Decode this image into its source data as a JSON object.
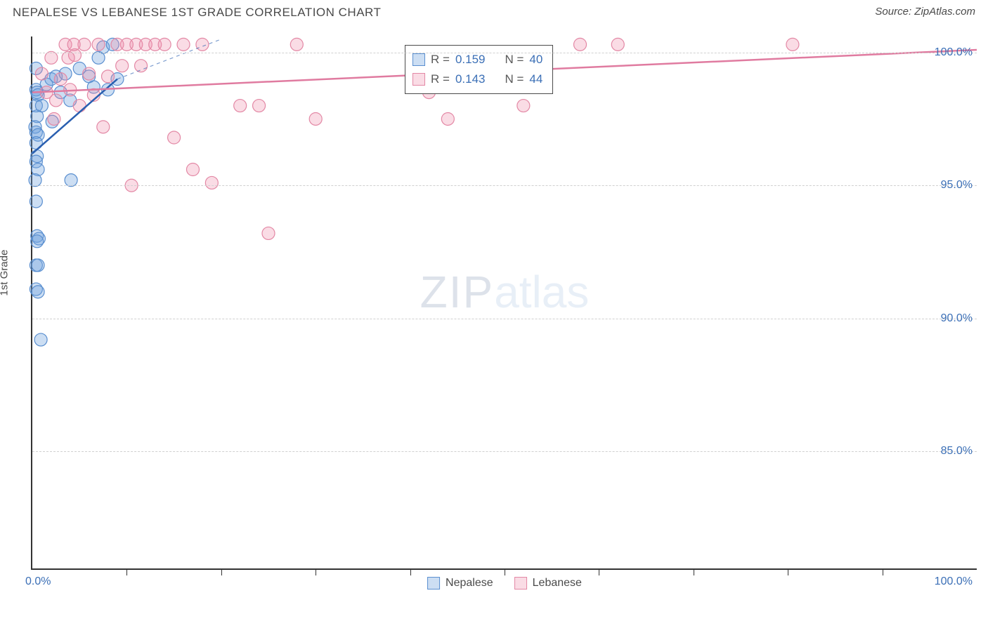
{
  "header": {
    "title": "NEPALESE VS LEBANESE 1ST GRADE CORRELATION CHART",
    "source_label": "Source: ",
    "source_value": "ZipAtlas.com"
  },
  "axes": {
    "y_title": "1st Grade",
    "x_min_label": "0.0%",
    "x_max_label": "100.0%",
    "x_min": 0,
    "x_max": 100,
    "y_min": 80.6,
    "y_max": 100.6,
    "y_ticks": [
      85.0,
      90.0,
      95.0,
      100.0
    ],
    "y_tick_labels": [
      "85.0%",
      "90.0%",
      "95.0%",
      "100.0%"
    ],
    "x_tick_step": 10,
    "grid_color": "#d0d0d0",
    "axis_color": "#333333"
  },
  "colors": {
    "series_a_fill": "rgba(110,160,220,0.35)",
    "series_a_stroke": "#5a8fd0",
    "series_a_line": "#2a5fb0",
    "series_b_fill": "rgba(240,140,170,0.30)",
    "series_b_stroke": "#e388a5",
    "series_b_line": "#e07ba0",
    "tick_label": "#3b6fb6",
    "background": "#ffffff"
  },
  "marker": {
    "radius": 9,
    "stroke_width": 1.2
  },
  "series": [
    {
      "name": "Nepalese",
      "legend_label": "Nepalese",
      "R": "0.159",
      "N": "40",
      "fit_line": {
        "x1": 0,
        "y1": 96.2,
        "x2": 9,
        "y2": 99.0
      },
      "dashed_extend": {
        "x1": 9,
        "y1": 99.0,
        "x2": 20,
        "y2": 100.5
      },
      "points": [
        {
          "x": 0.4,
          "y": 99.4
        },
        {
          "x": 0.4,
          "y": 98.6
        },
        {
          "x": 0.5,
          "y": 98.5
        },
        {
          "x": 0.6,
          "y": 98.4
        },
        {
          "x": 0.4,
          "y": 98.0
        },
        {
          "x": 0.5,
          "y": 97.6
        },
        {
          "x": 0.3,
          "y": 97.2
        },
        {
          "x": 0.4,
          "y": 97.0
        },
        {
          "x": 0.6,
          "y": 96.9
        },
        {
          "x": 0.4,
          "y": 96.6
        },
        {
          "x": 0.5,
          "y": 96.1
        },
        {
          "x": 0.4,
          "y": 95.9
        },
        {
          "x": 0.6,
          "y": 95.6
        },
        {
          "x": 0.3,
          "y": 95.2
        },
        {
          "x": 4.1,
          "y": 95.2
        },
        {
          "x": 0.4,
          "y": 94.4
        },
        {
          "x": 0.5,
          "y": 93.1
        },
        {
          "x": 0.7,
          "y": 93.0
        },
        {
          "x": 0.5,
          "y": 92.9
        },
        {
          "x": 0.4,
          "y": 92.0
        },
        {
          "x": 0.6,
          "y": 92.0
        },
        {
          "x": 0.4,
          "y": 91.1
        },
        {
          "x": 0.6,
          "y": 91.0
        },
        {
          "x": 0.9,
          "y": 89.2
        },
        {
          "x": 1.0,
          "y": 98.0
        },
        {
          "x": 1.5,
          "y": 98.8
        },
        {
          "x": 2.0,
          "y": 99.0
        },
        {
          "x": 2.5,
          "y": 99.1
        },
        {
          "x": 3.0,
          "y": 98.5
        },
        {
          "x": 3.5,
          "y": 99.2
        },
        {
          "x": 4.0,
          "y": 98.2
        },
        {
          "x": 5.0,
          "y": 99.4
        },
        {
          "x": 6.0,
          "y": 99.1
        },
        {
          "x": 6.5,
          "y": 98.7
        },
        {
          "x": 7.0,
          "y": 99.8
        },
        {
          "x": 7.5,
          "y": 100.2
        },
        {
          "x": 8.0,
          "y": 98.6
        },
        {
          "x": 8.5,
          "y": 100.3
        },
        {
          "x": 9.0,
          "y": 99.0
        },
        {
          "x": 2.1,
          "y": 97.4
        }
      ]
    },
    {
      "name": "Lebanese",
      "legend_label": "Lebanese",
      "R": "0.143",
      "N": "44",
      "fit_line": {
        "x1": 0,
        "y1": 98.5,
        "x2": 100,
        "y2": 100.1
      },
      "points": [
        {
          "x": 1.0,
          "y": 99.2
        },
        {
          "x": 1.5,
          "y": 98.5
        },
        {
          "x": 2.0,
          "y": 99.8
        },
        {
          "x": 2.5,
          "y": 98.2
        },
        {
          "x": 3.0,
          "y": 99.0
        },
        {
          "x": 3.5,
          "y": 100.3
        },
        {
          "x": 4.0,
          "y": 98.6
        },
        {
          "x": 4.5,
          "y": 99.9
        },
        {
          "x": 5.0,
          "y": 98.0
        },
        {
          "x": 5.5,
          "y": 100.3
        },
        {
          "x": 6.0,
          "y": 99.2
        },
        {
          "x": 6.5,
          "y": 98.4
        },
        {
          "x": 7.0,
          "y": 100.3
        },
        {
          "x": 7.5,
          "y": 97.2
        },
        {
          "x": 8.0,
          "y": 99.1
        },
        {
          "x": 2.3,
          "y": 97.5
        },
        {
          "x": 9.0,
          "y": 100.3
        },
        {
          "x": 9.5,
          "y": 99.5
        },
        {
          "x": 10.0,
          "y": 100.3
        },
        {
          "x": 10.5,
          "y": 95.0
        },
        {
          "x": 11.0,
          "y": 100.3
        },
        {
          "x": 11.5,
          "y": 99.5
        },
        {
          "x": 12.0,
          "y": 100.3
        },
        {
          "x": 13.0,
          "y": 100.3
        },
        {
          "x": 14.0,
          "y": 100.3
        },
        {
          "x": 15.0,
          "y": 96.8
        },
        {
          "x": 16.0,
          "y": 100.3
        },
        {
          "x": 17.0,
          "y": 95.6
        },
        {
          "x": 18.0,
          "y": 100.3
        },
        {
          "x": 19.0,
          "y": 95.1
        },
        {
          "x": 22.0,
          "y": 98.0
        },
        {
          "x": 24.0,
          "y": 98.0
        },
        {
          "x": 25.0,
          "y": 93.2
        },
        {
          "x": 28.0,
          "y": 100.3
        },
        {
          "x": 30.0,
          "y": 97.5
        },
        {
          "x": 42.0,
          "y": 98.5
        },
        {
          "x": 44.0,
          "y": 97.5
        },
        {
          "x": 46.0,
          "y": 98.8
        },
        {
          "x": 52.0,
          "y": 98.0
        },
        {
          "x": 58.0,
          "y": 100.3
        },
        {
          "x": 62.0,
          "y": 100.3
        },
        {
          "x": 80.5,
          "y": 100.3
        },
        {
          "x": 3.8,
          "y": 99.8
        },
        {
          "x": 4.4,
          "y": 100.3
        }
      ]
    }
  ],
  "legend_box": {
    "R_label": "R =",
    "N_label": "N ="
  },
  "bottom_legend": {
    "items": [
      "Nepalese",
      "Lebanese"
    ]
  },
  "watermark": {
    "part1": "ZIP",
    "part2": "atlas"
  }
}
